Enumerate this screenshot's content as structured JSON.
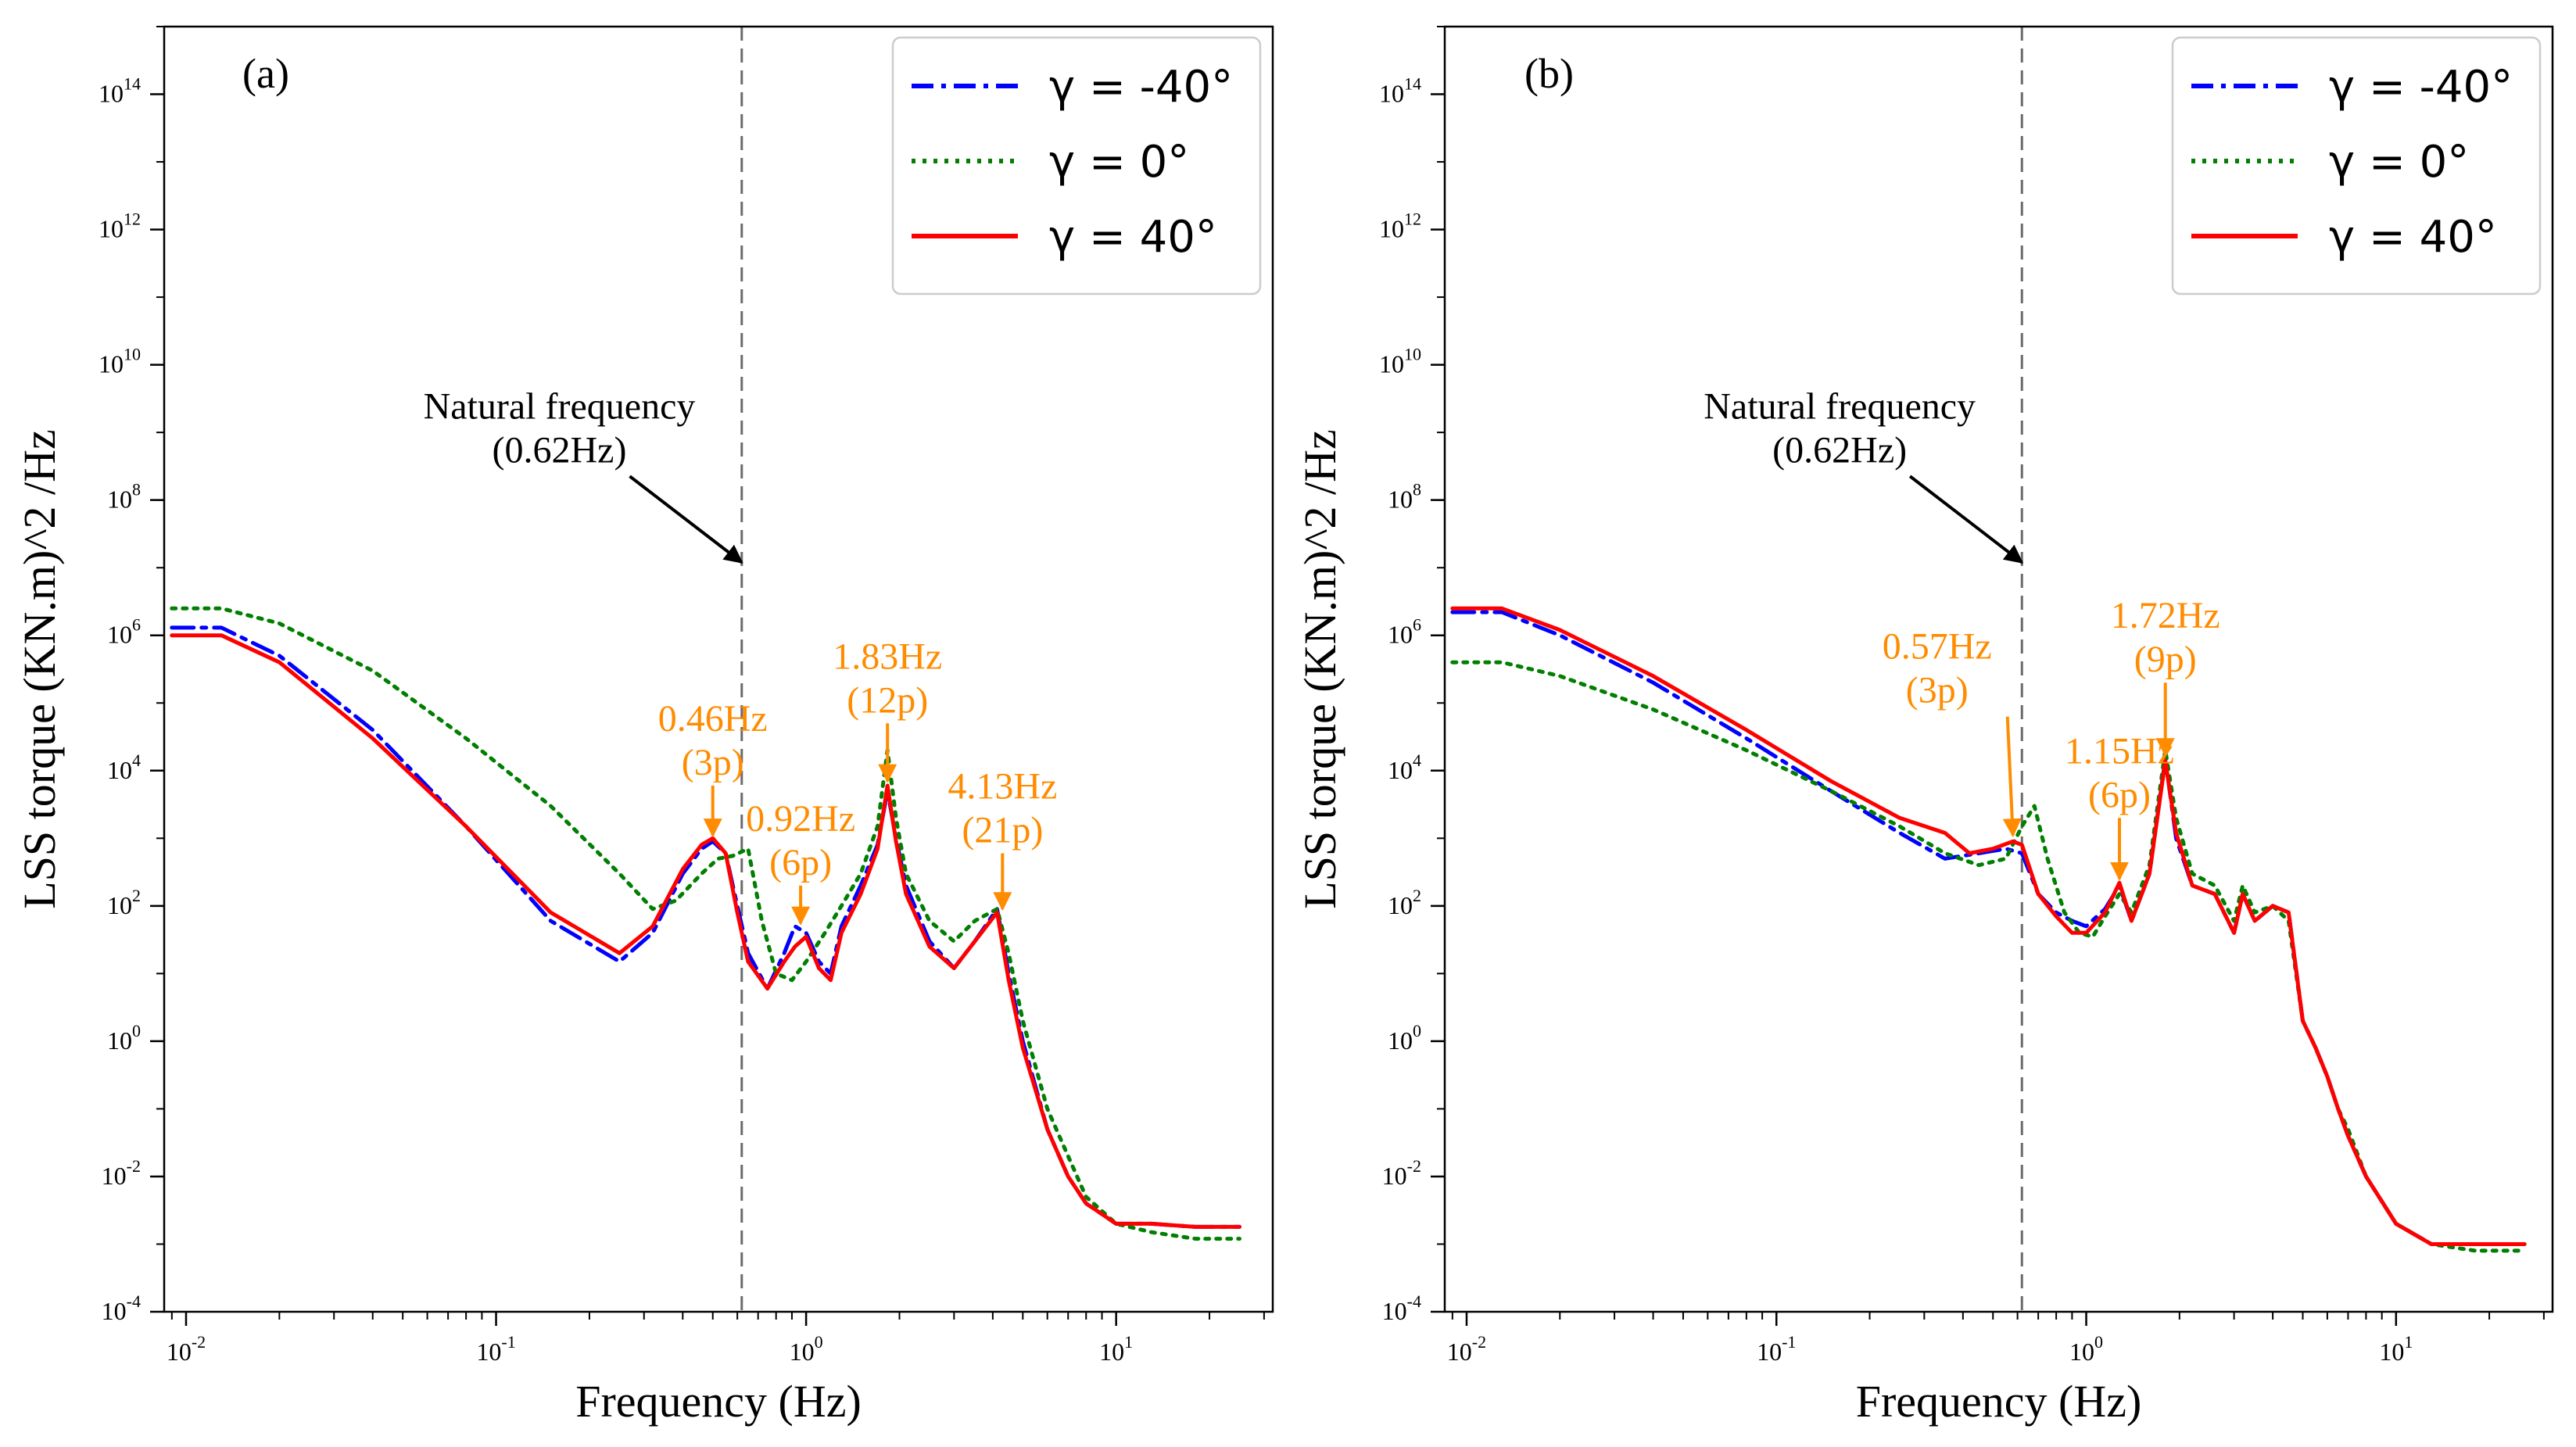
{
  "chart_data": [
    {
      "type": "line",
      "panel_label": "(a)",
      "xlabel": "Frequency (Hz)",
      "ylabel": "LSS torque (KN.m)^2 /Hz",
      "xscale": "log",
      "yscale": "log",
      "xlim": [
        0.0085,
        32
      ],
      "ylim": [
        0.0001,
        1000000000000000.0
      ],
      "x_ticks": [
        {
          "value": 0.01,
          "base": "10",
          "exp": "-2"
        },
        {
          "value": 0.1,
          "base": "10",
          "exp": "-1"
        },
        {
          "value": 1,
          "base": "10",
          "exp": "0"
        },
        {
          "value": 10,
          "base": "10",
          "exp": "1"
        }
      ],
      "y_ticks": [
        {
          "value": 0.0001,
          "base": "10",
          "exp": "-4"
        },
        {
          "value": 0.01,
          "base": "10",
          "exp": "-2"
        },
        {
          "value": 1,
          "base": "10",
          "exp": "0"
        },
        {
          "value": 100,
          "base": "10",
          "exp": "2"
        },
        {
          "value": 10000,
          "base": "10",
          "exp": "4"
        },
        {
          "value": 1000000,
          "base": "10",
          "exp": "6"
        },
        {
          "value": 100000000,
          "base": "10",
          "exp": "8"
        },
        {
          "value": 10000000000,
          "base": "10",
          "exp": "10"
        },
        {
          "value": 1000000000000,
          "base": "10",
          "exp": "12"
        },
        {
          "value": 100000000000000,
          "base": "10",
          "exp": "14"
        }
      ],
      "vline": {
        "x": 0.62
      },
      "legend": {
        "position": "top-right",
        "entries": [
          {
            "label": "γ = -40°",
            "style": "dashdot",
            "color": "#0000ff"
          },
          {
            "label": "γ = 0°",
            "style": "dotted",
            "color": "#007f00"
          },
          {
            "label": "γ = 40°",
            "style": "solid",
            "color": "#ff0000"
          }
        ]
      },
      "series": [
        {
          "name": "γ = -40°",
          "color": "#0000ff",
          "style": "dashdot",
          "x": [
            0.009,
            0.013,
            0.02,
            0.04,
            0.08,
            0.15,
            0.25,
            0.32,
            0.4,
            0.46,
            0.5,
            0.55,
            0.6,
            0.65,
            0.75,
            0.85,
            0.92,
            1.0,
            1.1,
            1.2,
            1.3,
            1.5,
            1.7,
            1.83,
            1.95,
            2.1,
            2.5,
            3.0,
            3.5,
            4.13,
            4.5,
            5.0,
            6.0,
            7.0,
            8.0,
            10.0,
            13.0,
            18.0,
            25.0
          ],
          "y": [
            1300000.0,
            1300000.0,
            500000.0,
            40000.0,
            1500.0,
            60.0,
            15.0,
            40.0,
            300.0,
            700.0,
            900.0,
            600.0,
            100.0,
            20.0,
            6.0,
            20.0,
            50.0,
            40.0,
            15.0,
            10.0,
            50.0,
            200.0,
            800.0,
            5000.0,
            1000.0,
            200.0,
            30.0,
            12.0,
            30.0,
            90.0,
            10.0,
            1.0,
            0.05,
            0.01,
            0.004,
            0.002,
            0.002,
            0.0018,
            0.0018
          ]
        },
        {
          "name": "γ = 0°",
          "color": "#007f00",
          "style": "dotted",
          "x": [
            0.009,
            0.013,
            0.02,
            0.04,
            0.08,
            0.15,
            0.25,
            0.32,
            0.38,
            0.46,
            0.52,
            0.58,
            0.65,
            0.72,
            0.8,
            0.9,
            1.0,
            1.15,
            1.3,
            1.5,
            1.7,
            1.83,
            1.95,
            2.1,
            2.5,
            3.0,
            3.5,
            4.13,
            4.5,
            5.0,
            6.0,
            7.0,
            8.0,
            10.0,
            13.0,
            18.0,
            25.0
          ],
          "y": [
            2500000.0,
            2500000.0,
            1500000.0,
            300000.0,
            30000.0,
            3000.0,
            300.0,
            90.0,
            120.0,
            300.0,
            500.0,
            550.0,
            700.0,
            60.0,
            10.0,
            8.0,
            15.0,
            40.0,
            100.0,
            300.0,
            1500.0,
            20000.0,
            2000.0,
            300.0,
            60.0,
            30.0,
            60.0,
            90.0,
            20.0,
            2.0,
            0.1,
            0.02,
            0.005,
            0.002,
            0.0015,
            0.0012,
            0.0012
          ]
        },
        {
          "name": "γ = 40°",
          "color": "#ff0000",
          "style": "solid",
          "x": [
            0.009,
            0.013,
            0.02,
            0.04,
            0.08,
            0.15,
            0.25,
            0.32,
            0.4,
            0.46,
            0.5,
            0.55,
            0.6,
            0.65,
            0.75,
            0.85,
            0.92,
            1.0,
            1.1,
            1.2,
            1.3,
            1.5,
            1.7,
            1.83,
            1.95,
            2.1,
            2.5,
            3.0,
            3.5,
            4.13,
            4.5,
            5.0,
            6.0,
            7.0,
            8.0,
            10.0,
            13.0,
            18.0,
            25.0
          ],
          "y": [
            1000000.0,
            1000000.0,
            400000.0,
            30000.0,
            1500.0,
            80.0,
            20.0,
            50.0,
            350.0,
            800.0,
            1000.0,
            600.0,
            80.0,
            15.0,
            6.0,
            15.0,
            25.0,
            35.0,
            12.0,
            8.0,
            40.0,
            150.0,
            700.0,
            6000.0,
            900.0,
            150.0,
            25.0,
            12.0,
            30.0,
            80.0,
            8.0,
            0.8,
            0.05,
            0.01,
            0.004,
            0.002,
            0.002,
            0.0018,
            0.0018
          ]
        }
      ],
      "annotations": [
        {
          "text": [
            "Natural frequency",
            "(0.62Hz)"
          ],
          "color": "#000000",
          "arrow_to": [
            0.62,
            12000000.0
          ],
          "text_at": [
            0.16,
            250000000.0
          ]
        },
        {
          "text": [
            "0.46Hz",
            "(3p)"
          ],
          "color": "#ff8c00",
          "arrow_to": [
            0.5,
            1100.0
          ],
          "text_at": [
            0.5,
            6000.0
          ]
        },
        {
          "text": [
            "0.92Hz",
            "(6p)"
          ],
          "color": "#ff8c00",
          "arrow_to": [
            0.96,
            55.0
          ],
          "text_at": [
            0.96,
            200.0
          ]
        },
        {
          "text": [
            "1.83Hz",
            "(12p)"
          ],
          "color": "#ff8c00",
          "arrow_to": [
            1.83,
            7000.0
          ],
          "text_at": [
            1.83,
            50000.0
          ]
        },
        {
          "text": [
            "4.13Hz",
            "(21p)"
          ],
          "color": "#ff8c00",
          "arrow_to": [
            4.3,
            90.0
          ],
          "text_at": [
            4.3,
            600.0
          ]
        }
      ]
    },
    {
      "type": "line",
      "panel_label": "(b)",
      "xlabel": "Frequency (Hz)",
      "ylabel": "LSS torque (KN.m)^2 /Hz",
      "xscale": "log",
      "yscale": "log",
      "xlim": [
        0.0085,
        32
      ],
      "ylim": [
        0.0001,
        1000000000000000.0
      ],
      "x_ticks": [
        {
          "value": 0.01,
          "base": "10",
          "exp": "-2"
        },
        {
          "value": 0.1,
          "base": "10",
          "exp": "-1"
        },
        {
          "value": 1,
          "base": "10",
          "exp": "0"
        },
        {
          "value": 10,
          "base": "10",
          "exp": "1"
        }
      ],
      "y_ticks": [
        {
          "value": 0.0001,
          "base": "10",
          "exp": "-4"
        },
        {
          "value": 0.01,
          "base": "10",
          "exp": "-2"
        },
        {
          "value": 1,
          "base": "10",
          "exp": "0"
        },
        {
          "value": 100,
          "base": "10",
          "exp": "2"
        },
        {
          "value": 10000,
          "base": "10",
          "exp": "4"
        },
        {
          "value": 1000000,
          "base": "10",
          "exp": "6"
        },
        {
          "value": 100000000,
          "base": "10",
          "exp": "8"
        },
        {
          "value": 10000000000,
          "base": "10",
          "exp": "10"
        },
        {
          "value": 1000000000000,
          "base": "10",
          "exp": "12"
        },
        {
          "value": 100000000000000,
          "base": "10",
          "exp": "14"
        }
      ],
      "vline": {
        "x": 0.62
      },
      "legend": {
        "position": "top-right",
        "entries": [
          {
            "label": "γ = -40°",
            "style": "dashdot",
            "color": "#0000ff"
          },
          {
            "label": "γ = 0°",
            "style": "dotted",
            "color": "#007f00"
          },
          {
            "label": "γ = 40°",
            "style": "solid",
            "color": "#ff0000"
          }
        ]
      },
      "series": [
        {
          "name": "γ = -40°",
          "color": "#0000ff",
          "style": "dashdot",
          "x": [
            0.009,
            0.013,
            0.02,
            0.04,
            0.08,
            0.15,
            0.25,
            0.35,
            0.45,
            0.55,
            0.62,
            0.7,
            0.8,
            0.9,
            1.0,
            1.15,
            1.28,
            1.4,
            1.6,
            1.8,
            1.95,
            2.2,
            2.6,
            3.0,
            3.2,
            3.5,
            4.0,
            4.5,
            5.0,
            5.5,
            6.0,
            6.5,
            7.0,
            8.0,
            10.0,
            13.0,
            18.0,
            26.0
          ],
          "y": [
            2200000.0,
            2200000.0,
            1000000.0,
            200000.0,
            30000.0,
            5000.0,
            1200.0,
            500.0,
            600.0,
            700.0,
            600.0,
            150.0,
            80.0,
            60.0,
            50.0,
            90.0,
            200.0,
            60.0,
            300.0,
            15000.0,
            1000.0,
            200.0,
            150.0,
            40.0,
            150.0,
            60.0,
            100.0,
            80.0,
            2.0,
            0.8,
            0.3,
            0.1,
            0.04,
            0.01,
            0.002,
            0.001,
            0.001,
            0.001
          ]
        },
        {
          "name": "γ = 0°",
          "color": "#007f00",
          "style": "dotted",
          "x": [
            0.009,
            0.013,
            0.02,
            0.04,
            0.08,
            0.15,
            0.25,
            0.35,
            0.45,
            0.55,
            0.62,
            0.68,
            0.75,
            0.85,
            0.95,
            1.05,
            1.15,
            1.28,
            1.4,
            1.6,
            1.8,
            1.95,
            2.2,
            2.6,
            3.0,
            3.2,
            3.5,
            4.0,
            4.5,
            5.0,
            5.5,
            6.0,
            6.5,
            7.0,
            8.0,
            10.0,
            13.0,
            18.0,
            26.0
          ],
          "y": [
            400000.0,
            400000.0,
            250000.0,
            80000.0,
            20000.0,
            5000.0,
            1500.0,
            600.0,
            400.0,
            500.0,
            1500.0,
            3000.0,
            500.0,
            80.0,
            40.0,
            35.0,
            70.0,
            150.0,
            80.0,
            400.0,
            20000.0,
            2000.0,
            300.0,
            200.0,
            60.0,
            200.0,
            80.0,
            100.0,
            60.0,
            2.0,
            0.8,
            0.3,
            0.1,
            0.05,
            0.01,
            0.002,
            0.001,
            0.0008,
            0.0008
          ]
        },
        {
          "name": "γ = 40°",
          "color": "#ff0000",
          "style": "solid",
          "x": [
            0.009,
            0.013,
            0.02,
            0.04,
            0.08,
            0.15,
            0.25,
            0.35,
            0.42,
            0.5,
            0.58,
            0.62,
            0.7,
            0.8,
            0.9,
            1.0,
            1.15,
            1.28,
            1.4,
            1.6,
            1.8,
            1.95,
            2.2,
            2.6,
            3.0,
            3.2,
            3.5,
            4.0,
            4.5,
            5.0,
            5.5,
            6.0,
            6.5,
            7.0,
            8.0,
            10.0,
            13.0,
            18.0,
            26.0
          ],
          "y": [
            2500000.0,
            2500000.0,
            1200000.0,
            250000.0,
            40000.0,
            7000.0,
            2000.0,
            1200.0,
            600.0,
            700.0,
            900.0,
            800.0,
            150.0,
            70.0,
            40.0,
            40.0,
            80.0,
            220.0,
            60.0,
            300.0,
            14000.0,
            1200.0,
            200.0,
            150.0,
            40.0,
            150.0,
            60.0,
            100.0,
            80.0,
            2.0,
            0.8,
            0.3,
            0.1,
            0.04,
            0.01,
            0.002,
            0.001,
            0.001,
            0.001
          ]
        }
      ],
      "annotations": [
        {
          "text": [
            "Natural frequency",
            "(0.62Hz)"
          ],
          "color": "#000000",
          "arrow_to": [
            0.62,
            12000000.0
          ],
          "text_at": [
            0.16,
            250000000.0
          ]
        },
        {
          "text": [
            "0.57Hz",
            "(3p)"
          ],
          "color": "#ff8c00",
          "arrow_to": [
            0.58,
            1100.0
          ],
          "text_at": [
            0.33,
            70000.0
          ]
        },
        {
          "text": [
            "1.15Hz",
            "(6p)"
          ],
          "color": "#ff8c00",
          "arrow_to": [
            1.28,
            250.0
          ],
          "text_at": [
            1.28,
            2000.0
          ]
        },
        {
          "text": [
            "1.72Hz",
            "(9p)"
          ],
          "color": "#ff8c00",
          "arrow_to": [
            1.8,
            17000.0
          ],
          "text_at": [
            1.8,
            200000.0
          ]
        }
      ]
    }
  ]
}
